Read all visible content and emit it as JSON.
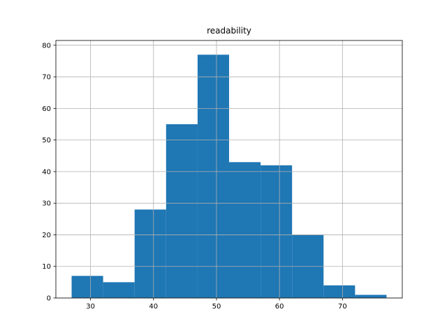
{
  "chart_data": {
    "type": "bar",
    "title": "readability",
    "xlabel": "",
    "ylabel": "",
    "bin_edges": [
      27,
      32,
      37,
      42,
      47,
      52,
      57,
      62,
      67,
      72,
      77
    ],
    "counts": [
      7,
      5,
      28,
      55,
      77,
      43,
      42,
      20,
      4,
      1
    ],
    "xlim": [
      24.5,
      79.5
    ],
    "ylim": [
      0,
      81.5
    ],
    "xticks": [
      30,
      40,
      50,
      60,
      70
    ],
    "yticks": [
      0,
      10,
      20,
      30,
      40,
      50,
      60,
      70,
      80
    ],
    "grid": true,
    "bar_color": "#1f77b4",
    "grid_color": "#b0b0b0"
  }
}
